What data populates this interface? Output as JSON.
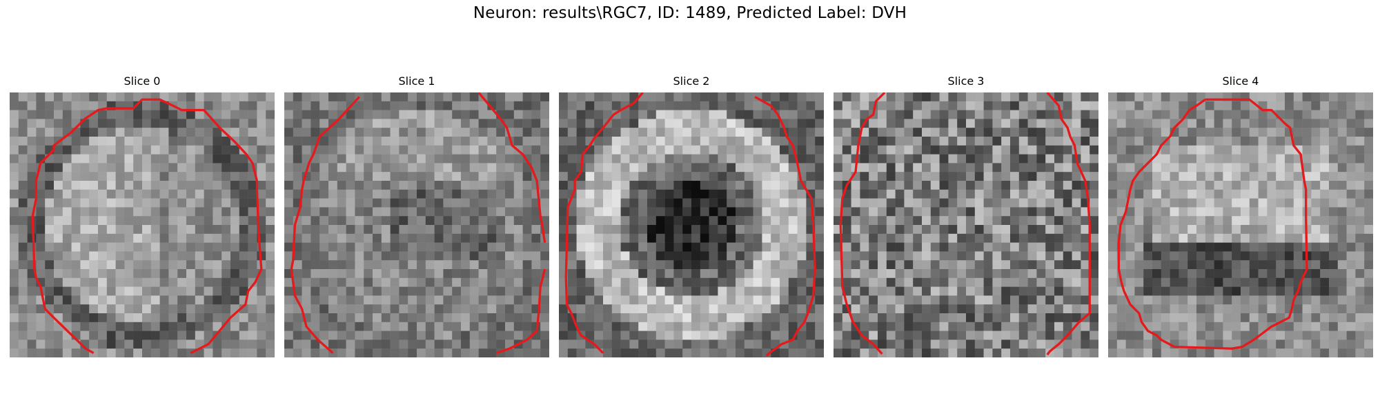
{
  "figure": {
    "title": "Neuron: results\\RGC7, ID: 1489, Predicted Label: DVH",
    "contour_color": "#e41a1c",
    "colormap": "gray"
  },
  "panels": [
    {
      "title": "Slice 0",
      "image_desc": "bright-textured-disc-outlined"
    },
    {
      "title": "Slice 1",
      "image_desc": "grainy-disc-partial-outline"
    },
    {
      "title": "Slice 2",
      "image_desc": "bright-ring-with-dark-centre-outlined"
    },
    {
      "title": "Slice 3",
      "image_desc": "noise-texture-side-outlines"
    },
    {
      "title": "Slice 4",
      "image_desc": "bright-upper-disc-dark-band-outlined"
    }
  ]
}
